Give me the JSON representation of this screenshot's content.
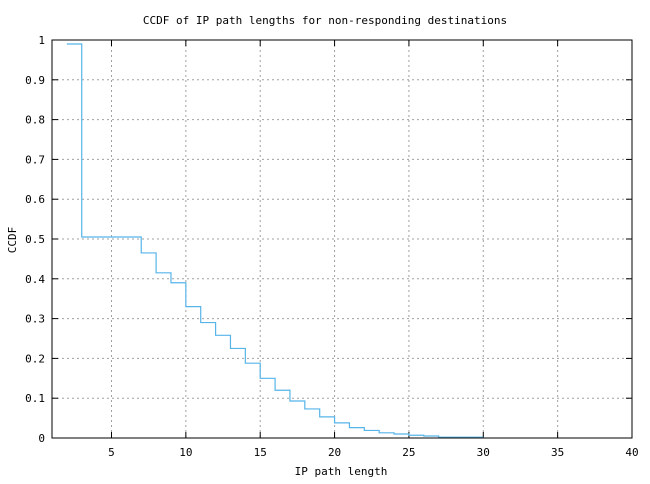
{
  "chart_data": {
    "type": "line",
    "style": "step",
    "title": "CCDF of IP path lengths for non-responding destinations",
    "xlabel": "IP path length",
    "ylabel": "CCDF",
    "xlim": [
      1,
      40
    ],
    "ylim": [
      0,
      1
    ],
    "grid": true,
    "xticks": [
      5,
      10,
      15,
      20,
      25,
      30,
      35,
      40
    ],
    "yticks": [
      0,
      0.1,
      0.2,
      0.3,
      0.4,
      0.5,
      0.6,
      0.7,
      0.8,
      0.9,
      1
    ],
    "xtick_labels": [
      "5",
      "10",
      "15",
      "20",
      "25",
      "30",
      "35",
      "40"
    ],
    "ytick_labels": [
      "0",
      "0.1",
      "0.2",
      "0.3",
      "0.4",
      "0.5",
      "0.6",
      "0.7",
      "0.8",
      "0.9",
      "1"
    ],
    "series": [
      {
        "name": "CCDF",
        "color": "#56b4e9",
        "x": [
          2,
          3,
          4,
          5,
          6,
          7,
          8,
          9,
          10,
          11,
          12,
          13,
          14,
          15,
          16,
          17,
          18,
          19,
          20,
          21,
          22,
          23,
          24,
          25,
          26,
          27,
          28,
          29,
          30
        ],
        "y": [
          0.99,
          0.505,
          0.505,
          0.505,
          0.505,
          0.465,
          0.415,
          0.39,
          0.33,
          0.29,
          0.258,
          0.225,
          0.188,
          0.15,
          0.12,
          0.093,
          0.073,
          0.053,
          0.038,
          0.026,
          0.019,
          0.013,
          0.01,
          0.007,
          0.005,
          0.002,
          0.002,
          0.002,
          0.002
        ]
      }
    ]
  }
}
